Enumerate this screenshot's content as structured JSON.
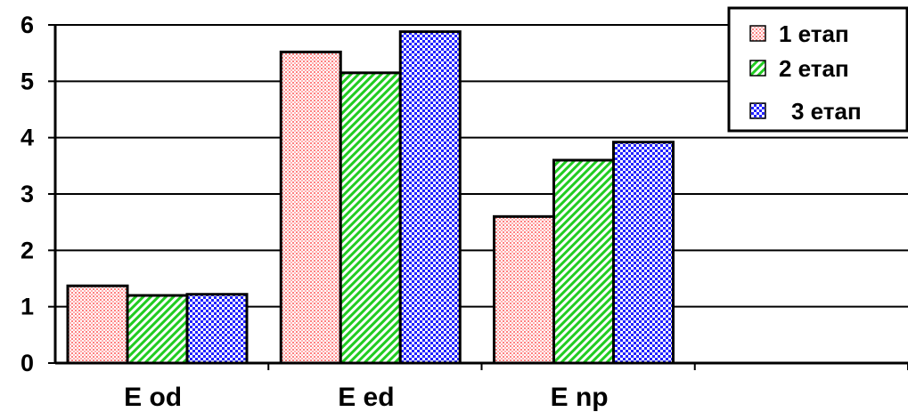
{
  "chart_data": {
    "type": "bar",
    "categories": [
      "E od",
      "E ed",
      "E np"
    ],
    "series": [
      {
        "name": "1 етап",
        "values": [
          1.37,
          5.52,
          2.6
        ],
        "color": "#ff9a9a",
        "pattern": "dots"
      },
      {
        "name": "2 етап",
        "values": [
          1.2,
          5.15,
          3.6
        ],
        "color": "#33dd33",
        "pattern": "diagonal"
      },
      {
        "name": "3 етап",
        "values": [
          1.22,
          5.88,
          3.92
        ],
        "color": "#3333ff",
        "pattern": "checker"
      }
    ],
    "ylim": [
      0,
      6
    ],
    "yticks": [
      "0",
      "1",
      "2",
      "3",
      "4",
      "5",
      "6"
    ],
    "grid": true,
    "legend_position": "top-right",
    "title": "",
    "xlabel": "",
    "ylabel": ""
  }
}
